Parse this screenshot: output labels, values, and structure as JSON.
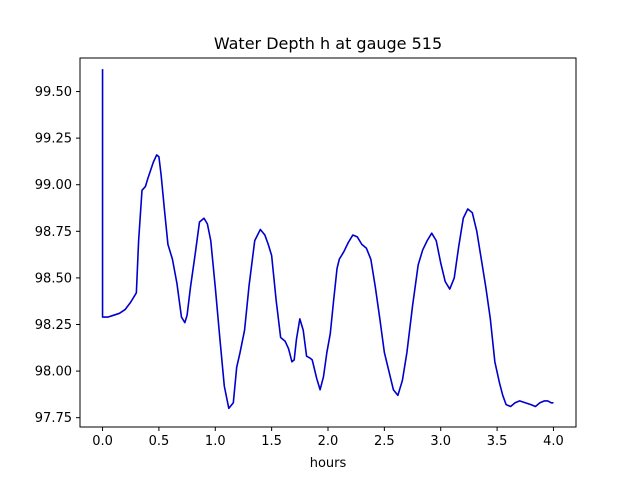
{
  "chart_data": {
    "type": "line",
    "title": "Water Depth h at gauge 515",
    "xlabel": "hours",
    "ylabel": "",
    "xlim": [
      -0.2,
      4.2
    ],
    "ylim": [
      97.7,
      99.68
    ],
    "xticks": [
      0.0,
      0.5,
      1.0,
      1.5,
      2.0,
      2.5,
      3.0,
      3.5,
      4.0
    ],
    "xtick_labels": [
      "0.0",
      "0.5",
      "1.0",
      "1.5",
      "2.0",
      "2.5",
      "3.0",
      "3.5",
      "4.0"
    ],
    "yticks": [
      97.75,
      98.0,
      98.25,
      98.5,
      98.75,
      99.0,
      99.25,
      99.5
    ],
    "ytick_labels": [
      "97.75",
      "98.00",
      "98.25",
      "98.50",
      "98.75",
      "99.00",
      "99.25",
      "99.50"
    ],
    "grid": false,
    "series": [
      {
        "color": "#0000cc",
        "x": [
          0.0,
          0.0,
          0.0,
          0.05,
          0.1,
          0.15,
          0.2,
          0.25,
          0.3,
          0.32,
          0.35,
          0.38,
          0.4,
          0.45,
          0.48,
          0.5,
          0.52,
          0.55,
          0.58,
          0.62,
          0.66,
          0.7,
          0.73,
          0.75,
          0.78,
          0.82,
          0.86,
          0.9,
          0.93,
          0.96,
          1.0,
          1.04,
          1.08,
          1.12,
          1.16,
          1.19,
          1.22,
          1.26,
          1.3,
          1.35,
          1.4,
          1.44,
          1.47,
          1.5,
          1.54,
          1.58,
          1.62,
          1.65,
          1.68,
          1.7,
          1.72,
          1.75,
          1.78,
          1.81,
          1.84,
          1.86,
          1.88,
          1.9,
          1.93,
          1.96,
          1.99,
          2.02,
          2.05,
          2.08,
          2.1,
          2.14,
          2.18,
          2.22,
          2.26,
          2.3,
          2.34,
          2.38,
          2.42,
          2.46,
          2.5,
          2.54,
          2.58,
          2.62,
          2.66,
          2.7,
          2.75,
          2.8,
          2.84,
          2.88,
          2.92,
          2.96,
          3.0,
          3.04,
          3.08,
          3.12,
          3.16,
          3.2,
          3.24,
          3.28,
          3.32,
          3.36,
          3.4,
          3.44,
          3.48,
          3.52,
          3.55,
          3.58,
          3.62,
          3.66,
          3.7,
          3.75,
          3.8,
          3.84,
          3.88,
          3.92,
          3.95,
          3.98,
          4.0
        ],
        "y": [
          99.62,
          99.3,
          98.29,
          98.29,
          98.3,
          98.31,
          98.33,
          98.37,
          98.42,
          98.7,
          98.97,
          98.99,
          99.03,
          99.12,
          99.16,
          99.15,
          99.05,
          98.86,
          98.68,
          98.6,
          98.47,
          98.29,
          98.26,
          98.3,
          98.45,
          98.62,
          98.8,
          98.82,
          98.79,
          98.7,
          98.45,
          98.18,
          97.92,
          97.8,
          97.83,
          98.02,
          98.1,
          98.22,
          98.46,
          98.7,
          98.76,
          98.73,
          98.68,
          98.62,
          98.38,
          98.18,
          98.16,
          98.12,
          98.05,
          98.06,
          98.17,
          98.28,
          98.22,
          98.08,
          98.07,
          98.06,
          98.01,
          97.96,
          97.9,
          97.97,
          98.1,
          98.2,
          98.38,
          98.55,
          98.6,
          98.64,
          98.69,
          98.73,
          98.72,
          98.68,
          98.66,
          98.6,
          98.45,
          98.28,
          98.1,
          98.0,
          97.9,
          97.87,
          97.95,
          98.1,
          98.35,
          98.57,
          98.65,
          98.7,
          98.74,
          98.7,
          98.58,
          98.48,
          98.44,
          98.5,
          98.67,
          98.82,
          98.87,
          98.85,
          98.75,
          98.6,
          98.45,
          98.28,
          98.05,
          97.94,
          97.87,
          97.82,
          97.81,
          97.83,
          97.84,
          97.83,
          97.82,
          97.81,
          97.83,
          97.84,
          97.84,
          97.83,
          97.83
        ]
      }
    ]
  }
}
